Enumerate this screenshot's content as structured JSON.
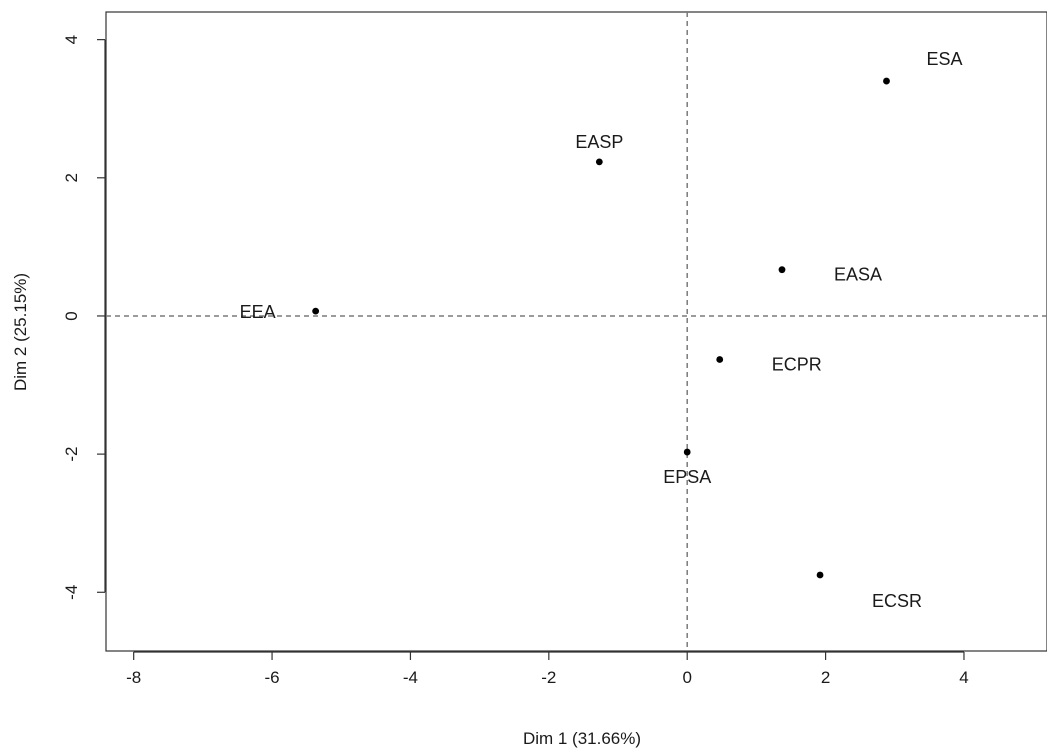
{
  "chart_data": {
    "type": "scatter",
    "title": "",
    "xlabel": "Dim 1 (31.66%)",
    "ylabel": "Dim 2 (25.15%)",
    "xlim": [
      -8.4,
      5.2
    ],
    "ylim": [
      -4.85,
      4.4
    ],
    "xticks": [
      -8,
      -6,
      -4,
      -2,
      0,
      2,
      4
    ],
    "yticks": [
      -4,
      -2,
      0,
      2,
      4
    ],
    "reference_lines": {
      "x": 0,
      "y": 0,
      "style": "dashed"
    },
    "grid": false,
    "legend": "none",
    "point_color": "#000000",
    "points": [
      {
        "label": "ESA",
        "x": 2.88,
        "y": 3.4,
        "label_pos": "above-right"
      },
      {
        "label": "EASP",
        "x": -1.27,
        "y": 2.23,
        "label_pos": "above"
      },
      {
        "label": "EASA",
        "x": 1.37,
        "y": 0.67,
        "label_pos": "right"
      },
      {
        "label": "EEA",
        "x": -5.37,
        "y": 0.07,
        "label_pos": "left"
      },
      {
        "label": "ECPR",
        "x": 0.47,
        "y": -0.63,
        "label_pos": "right"
      },
      {
        "label": "EPSA",
        "x": 0.0,
        "y": -1.97,
        "label_pos": "below"
      },
      {
        "label": "ECSR",
        "x": 1.92,
        "y": -3.75,
        "label_pos": "below-right"
      }
    ]
  }
}
